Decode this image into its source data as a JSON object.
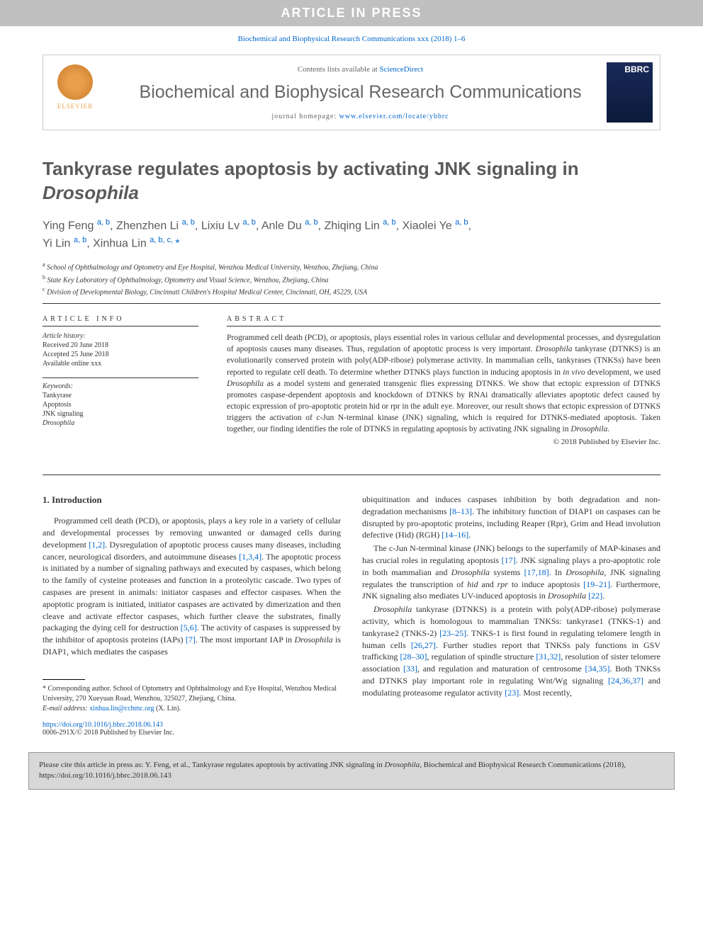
{
  "banner": "ARTICLE IN PRESS",
  "citation_line": "Biochemical and Biophysical Research Communications xxx (2018) 1–6",
  "header": {
    "contents_prefix": "Contents lists available at ",
    "contents_link": "ScienceDirect",
    "journal_name": "Biochemical and Biophysical Research Communications",
    "homepage_prefix": "journal homepage: ",
    "homepage_link": "www.elsevier.com/locate/ybbrc",
    "elsevier": "ELSEVIER",
    "bbrc": "BBRC"
  },
  "title": "Tankyrase regulates apoptosis by activating JNK signaling in Drosophila",
  "authors_line1": "Ying Feng a, b, Zhenzhen Li a, b, Lixiu Lv a, b, Anle Du a, b, Zhiqing Lin a, b, Xiaolei Ye a, b,",
  "authors_line2": "Yi Lin a, b, Xinhua Lin a, b, c, *",
  "affiliations": {
    "a": "School of Ophthalmology and Optometry and Eye Hospital, Wenzhou Medical University, Wenzhou, Zhejiang, China",
    "b": "State Key Laboratory of Ophthalmology, Optometry and Visual Science, Wenzhou, Zhejiang, China",
    "c": "Division of Developmental Biology, Cincinnati Children's Hospital Medical Center, Cincinnati, OH, 45229, USA"
  },
  "info": {
    "heading": "ARTICLE INFO",
    "history_label": "Article history:",
    "received": "Received 20 June 2018",
    "accepted": "Accepted 25 June 2018",
    "available": "Available online xxx",
    "keywords_label": "Keywords:",
    "keywords": [
      "Tankyrase",
      "Apoptosis",
      "JNK signaling",
      "Drosophila"
    ]
  },
  "abstract": {
    "heading": "ABSTRACT",
    "text": "Programmed cell death (PCD), or apoptosis, plays essential roles in various cellular and developmental processes, and dysregulation of apoptosis causes many diseases. Thus, regulation of apoptotic process is very important. Drosophila tankyrase (DTNKS) is an evolutionarily conserved protein with poly(ADP-ribose) polymerase activity. In mammalian cells, tankyrases (TNKSs) have been reported to regulate cell death. To determine whether DTNKS plays function in inducing apoptosis in in vivo development, we used Drosophila as a model system and generated transgenic flies expressing DTNKS. We show that ectopic expression of DTNKS promotes caspase-dependent apoptosis and knockdown of DTNKS by RNAi dramatically alleviates apoptotic defect caused by ectopic expression of pro-apoptotic protein hid or rpr in the adult eye. Moreover, our result shows that ectopic expression of DTNKS triggers the activation of c-Jun N-terminal kinase (JNK) signaling, which is required for DTNKS-mediated apoptosis. Taken together, our finding identifies the role of DTNKS in regulating apoptosis by activating JNK signaling in Drosophila.",
    "copyright": "© 2018 Published by Elsevier Inc."
  },
  "body": {
    "section_heading": "1. Introduction",
    "col1_p1": "Programmed cell death (PCD), or apoptosis, plays a key role in a variety of cellular and developmental processes by removing unwanted or damaged cells during development [1,2]. Dysregulation of apoptotic process causes many diseases, including cancer, neurological disorders, and autoimmune diseases [1,3,4]. The apoptotic process is initiated by a number of signaling pathways and executed by caspases, which belong to the family of cysteine proteases and function in a proteolytic cascade. Two types of caspases are present in animals: initiator caspases and effector caspases. When the apoptotic program is initiated, initiator caspases are activated by dimerization and then cleave and activate effector caspases, which further cleave the substrates, finally packaging the dying cell for destruction [5,6]. The activity of caspases is suppressed by the inhibitor of apoptosis proteins (IAPs) [7]. The most important IAP in Drosophila is DIAP1, which mediates the caspases",
    "col2_p1": "ubiquitination and induces caspases inhibition by both degradation and non-degradation mechanisms [8–13]. The inhibitory function of DIAP1 on caspases can be disrupted by pro-apoptotic proteins, including Reaper (Rpr), Grim and Head involution defective (Hid) (RGH) [14–16].",
    "col2_p2": "The c-Jun N-terminal kinase (JNK) belongs to the superfamily of MAP-kinases and has crucial roles in regulating apoptosis [17]. JNK signaling plays a pro-apoptotic role in both mammalian and Drosophila systems [17,18]. In Drosophila, JNK signaling regulates the transcription of hid and rpr to induce apoptosis [19–21]. Furthermore, JNK signaling also mediates UV-induced apoptosis in Drosophila [22].",
    "col2_p3": "Drosophila tankyrase (DTNKS) is a protein with poly(ADP-ribose) polymerase activity, which is homologous to mammalian TNKSs: tankyrase1 (TNKS-1) and tankyrase2 (TNKS-2) [23–25]. TNKS-1 is first found in regulating telomere length in human cells [26,27]. Further studies report that TNKSs paly functions in GSV trafficking [28–30], regulation of spindle structure [31,32], resolution of sister telomere association [33], and regulation and maturation of centrosome [34,35]. Both TNKSs and DTNKS play important role in regulating Wnt/Wg signaling [24,36,37] and modulating proteasome regulator activity [23]. Most recently,"
  },
  "footnote": {
    "corr": "* Corresponding author. School of Optometry and Ophthalmology and Eye Hospital, Wenzhou Medical University, 270 Xueyuan Road, Wenzhou, 325027, Zhejiang, China.",
    "email_label": "E-mail address: ",
    "email": "xinhua.lin@cchmc.org",
    "email_who": " (X. Lin)."
  },
  "doi": {
    "link": "https://doi.org/10.1016/j.bbrc.2018.06.143",
    "line": "0006-291X/© 2018 Published by Elsevier Inc."
  },
  "cite": "Please cite this article in press as: Y. Feng, et al., Tankyrase regulates apoptosis by activating JNK signaling in Drosophila, Biochemical and Biophysical Research Communications (2018), https://doi.org/10.1016/j.bbrc.2018.06.143",
  "colors": {
    "banner_bg": "#c0c0c0",
    "link": "#0066cc",
    "heading": "#5a5a5a",
    "cite_bg": "#d8d8d8"
  }
}
